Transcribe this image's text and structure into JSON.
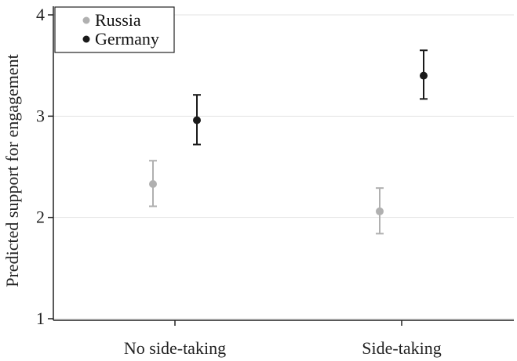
{
  "chart_data": {
    "type": "scatter",
    "title": "",
    "xlabel": "",
    "ylabel": "Predicted support for engagement",
    "categories": [
      "No side-taking",
      "Side-taking"
    ],
    "ylim": [
      1,
      4
    ],
    "yticks": [
      1,
      2,
      3,
      4
    ],
    "grid": true,
    "legend_position": "top-left",
    "series": [
      {
        "name": "Russia",
        "color": "#b0b0b0",
        "values": [
          2.33,
          2.06
        ],
        "ci_low": [
          2.11,
          1.84
        ],
        "ci_high": [
          2.56,
          2.29
        ]
      },
      {
        "name": "Germany",
        "color": "#1a1a1a",
        "values": [
          2.96,
          3.4
        ],
        "ci_low": [
          2.72,
          3.17
        ],
        "ci_high": [
          3.21,
          3.65
        ]
      }
    ]
  }
}
